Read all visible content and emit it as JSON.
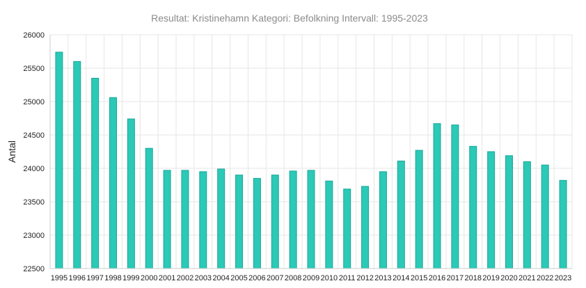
{
  "chart_data": {
    "type": "bar",
    "title": "Resultat: Kristinehamn Kategori: Befolkning Intervall: 1995-2023",
    "xlabel": "",
    "ylabel": "Antal",
    "ylim": [
      22500,
      26000
    ],
    "yticks": [
      22500,
      23000,
      23500,
      24000,
      24500,
      25000,
      25500,
      26000
    ],
    "grid": true,
    "categories": [
      "1995",
      "1996",
      "1997",
      "1998",
      "1999",
      "2000",
      "2001",
      "2002",
      "2003",
      "2004",
      "2005",
      "2006",
      "2007",
      "2008",
      "2009",
      "2010",
      "2011",
      "2012",
      "2013",
      "2014",
      "2015",
      "2016",
      "2017",
      "2018",
      "2019",
      "2020",
      "2021",
      "2022",
      "2023"
    ],
    "values": [
      25740,
      25600,
      25350,
      25060,
      24740,
      24300,
      23970,
      23970,
      23950,
      23990,
      23900,
      23850,
      23900,
      23960,
      23970,
      23810,
      23690,
      23730,
      23950,
      24110,
      24270,
      24670,
      24650,
      24330,
      24250,
      24190,
      24100,
      24050,
      23820
    ],
    "bar_color": "#2cc9b7",
    "bar_edge_color": "#17a898"
  }
}
